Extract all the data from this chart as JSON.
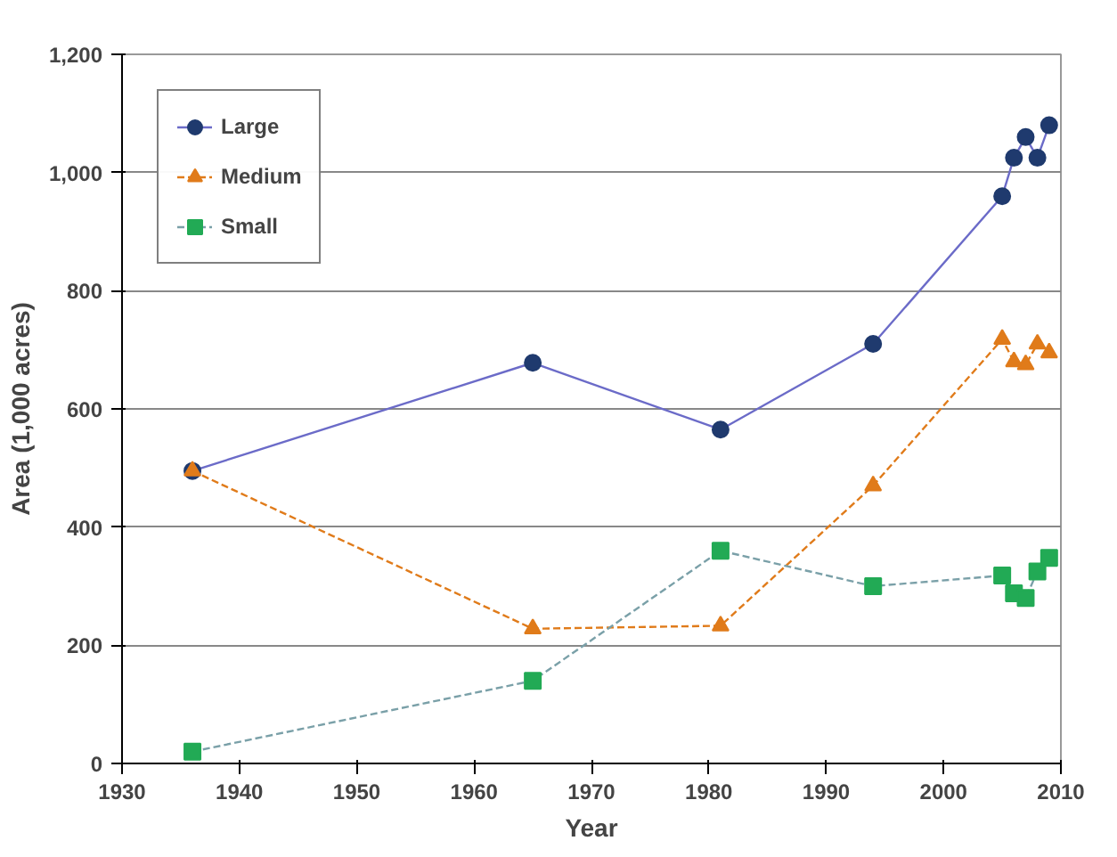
{
  "chart_data": {
    "type": "line",
    "xlabel": "Year",
    "ylabel": "Area (1,000 acres)",
    "x": [
      1936,
      1965,
      1981,
      1994,
      2005,
      2006,
      2007,
      2008,
      2009
    ],
    "xlim": [
      1930,
      2010
    ],
    "xticks": [
      1930,
      1940,
      1950,
      1960,
      1970,
      1980,
      1990,
      2000,
      2010
    ],
    "ylim": [
      0,
      1200
    ],
    "yticks": [
      0,
      200,
      400,
      600,
      800,
      {
        "value": 1000,
        "label": "1,000"
      },
      {
        "value": 1200,
        "label": "1,200"
      }
    ],
    "grid": "y",
    "legend": "top left",
    "series": [
      {
        "name": "Large",
        "color": "#1f3a6e",
        "marker": "circle",
        "line_style": "solid",
        "values": [
          495,
          678,
          565,
          710,
          960,
          1025,
          1060,
          1025,
          1080
        ]
      },
      {
        "name": "Medium",
        "color": "#e07b1a",
        "marker": "triangle",
        "line_style": "dashed",
        "values": [
          495,
          228,
          233,
          470,
          718,
          680,
          675,
          710,
          695
        ]
      },
      {
        "name": "Small",
        "color": "#22aa55",
        "marker": "square",
        "line_style": "dashed",
        "values": [
          20,
          140,
          360,
          300,
          318,
          288,
          280,
          325,
          348
        ]
      }
    ]
  }
}
